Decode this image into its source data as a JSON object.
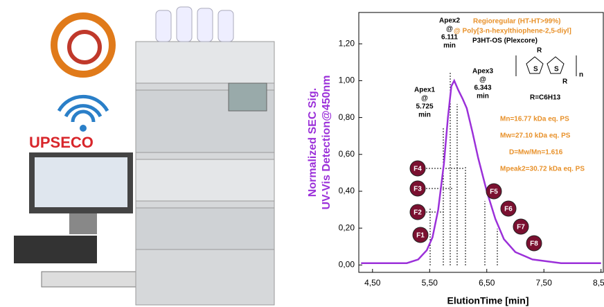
{
  "logo": {
    "text": "UPSECO"
  },
  "chart_data": {
    "type": "line",
    "ylabel": [
      "Normalized SEC Sig.",
      "UV-Vis Detection@450nm"
    ],
    "xlabel": "ElutionTime [min]",
    "xlim": [
      4.26,
      8.54
    ],
    "ylim": [
      -0.04,
      1.37
    ],
    "xticks": [
      {
        "value": 4.5,
        "label": "4,50"
      },
      {
        "value": 5.5,
        "label": "5,50"
      },
      {
        "value": 6.5,
        "label": "6,50"
      },
      {
        "value": 7.5,
        "label": "7,50"
      },
      {
        "value": 8.5,
        "label": "8,50"
      }
    ],
    "yticks": [
      {
        "value": 0,
        "label": "0,00"
      },
      {
        "value": 0.2,
        "label": "0,20"
      },
      {
        "value": 0.4,
        "label": "0,40"
      },
      {
        "value": 0.6,
        "label": "0,60"
      },
      {
        "value": 0.8,
        "label": "0,80"
      },
      {
        "value": 1,
        "label": "1,00"
      },
      {
        "value": 1.2,
        "label": "1,20"
      }
    ],
    "x": [
      4.3,
      4.8,
      5.1,
      5.3,
      5.45,
      5.55,
      5.65,
      5.75,
      5.82,
      5.88,
      5.93,
      6.0,
      6.08,
      6.15,
      6.25,
      6.35,
      6.5,
      6.65,
      6.8,
      7.0,
      7.3,
      7.8,
      8.5
    ],
    "series": [
      {
        "color": "#9b30d9",
        "values": [
          0.01,
          0.01,
          0.01,
          0.03,
          0.08,
          0.15,
          0.3,
          0.55,
          0.8,
          0.97,
          1.0,
          0.95,
          0.9,
          0.85,
          0.72,
          0.58,
          0.4,
          0.25,
          0.14,
          0.07,
          0.03,
          0.01,
          0.01
        ]
      }
    ],
    "apex_labels": [
      [
        "Apex1",
        "@",
        "5.725",
        "min"
      ],
      [
        "Apex2",
        "@",
        "6.111",
        "min"
      ],
      [
        "Apex3",
        "@",
        "6.343",
        "min"
      ]
    ],
    "polymer": {
      "line1": "Regioregular (HT-HT>99%)",
      "line2": "@ Poly[3-n-hexylthiophene-2,5-diyl]",
      "line3": "P3HT-OS (Plexcore)",
      "r_top": "R",
      "r_bottom": "R",
      "s1": "S",
      "s2": "S",
      "n": "n",
      "formula": "R=C6H13"
    },
    "stats": [
      "Mn=16.77 kDa eq. PS",
      "Mw=27.10 kDa eq. PS",
      "D=Mw/Mn=1.616",
      "Mpeak2=30.72 kDa eq. PS"
    ],
    "fractions": [
      "F1",
      "F2",
      "F3",
      "F4",
      "F5",
      "F6",
      "F7",
      "F8"
    ]
  }
}
